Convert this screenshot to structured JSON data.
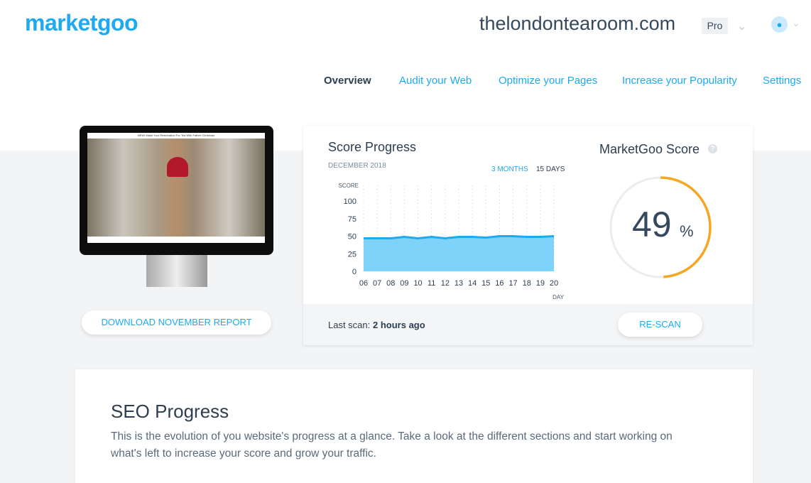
{
  "header": {
    "logo": "marketgoo",
    "site": "thelondontearoom.com",
    "plan": "Pro"
  },
  "nav": [
    {
      "label": "Overview",
      "active": true
    },
    {
      "label": "Audit your Web"
    },
    {
      "label": "Optimize your Pages"
    },
    {
      "label": "Increase your Popularity"
    },
    {
      "label": "Settings"
    }
  ],
  "preview": {
    "banner": "NEW! Make Your Reservation For Tea With Father Christmas",
    "download_label": "DOWNLOAD NOVEMBER REPORT"
  },
  "score_progress": {
    "title": "Score Progress",
    "period": "DECEMBER 2018",
    "range_3m": "3 MONTHS",
    "range_15d": "15 DAYS",
    "last_scan_label": "Last scan:",
    "last_scan_value": "2 hours ago",
    "rescan_label": "RE-SCAN"
  },
  "chart_data": {
    "type": "area",
    "ylabel": "SCORE",
    "xlabel": "DAY",
    "ylim": [
      0,
      100
    ],
    "yticks": [
      "100",
      "75",
      "50",
      "25",
      "0"
    ],
    "categories": [
      "06",
      "07",
      "08",
      "09",
      "10",
      "11",
      "12",
      "13",
      "14",
      "15",
      "16",
      "17",
      "18",
      "19",
      "20"
    ],
    "values": [
      47,
      47,
      47,
      49,
      47,
      49,
      47,
      49,
      49,
      48,
      50,
      50,
      49,
      49,
      50
    ],
    "color": "#1eaaf1",
    "fill": "#7fd3fb",
    "grid": "vertical-dotted"
  },
  "score": {
    "title": "MarketGoo Score",
    "value": "49",
    "unit": "%",
    "percent": 49,
    "color": "#f5a623",
    "help_icon": "question-icon"
  },
  "seo": {
    "title": "SEO Progress",
    "text1": "This is the evolution of you website's progress at a glance. Take a look at the different sections and start working on",
    "text2": "what's left to increase your score and grow your traffic."
  }
}
